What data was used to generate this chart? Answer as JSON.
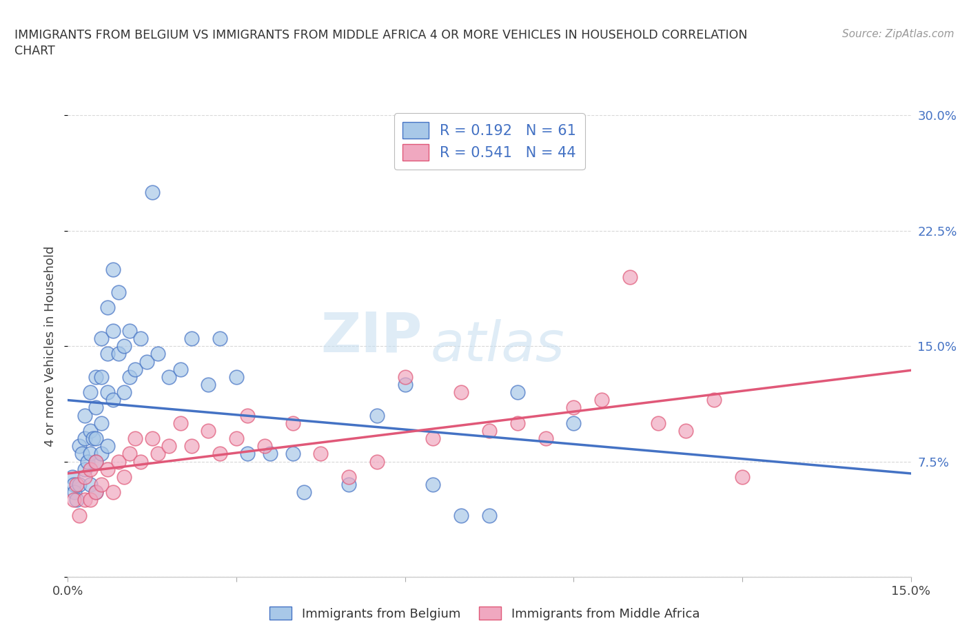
{
  "title_line1": "IMMIGRANTS FROM BELGIUM VS IMMIGRANTS FROM MIDDLE AFRICA 4 OR MORE VEHICLES IN HOUSEHOLD CORRELATION",
  "title_line2": "CHART",
  "source_text": "Source: ZipAtlas.com",
  "ylabel": "4 or more Vehicles in Household",
  "xlim": [
    0.0,
    0.15
  ],
  "ylim": [
    0.0,
    0.3
  ],
  "xticks": [
    0.0,
    0.03,
    0.06,
    0.09,
    0.12,
    0.15
  ],
  "yticks": [
    0.0,
    0.075,
    0.15,
    0.225,
    0.3
  ],
  "xtick_labels": [
    "0.0%",
    "",
    "",
    "",
    "",
    "15.0%"
  ],
  "ytick_right_labels": [
    "",
    "7.5%",
    "15.0%",
    "22.5%",
    "30.0%"
  ],
  "watermark_zip": "ZIP",
  "watermark_atlas": "atlas",
  "belgium_color": "#a8c8e8",
  "middle_africa_color": "#f0a8c0",
  "belgium_line_color": "#4472c4",
  "middle_africa_line_color": "#e05878",
  "legend_r_belgium": "R = 0.192",
  "legend_n_belgium": "N = 61",
  "legend_r_middle_africa": "R = 0.541",
  "legend_n_middle_africa": "N = 44",
  "legend_text_color": "#4472c4",
  "belgium_scatter_x": [
    0.0008,
    0.001,
    0.0012,
    0.0015,
    0.002,
    0.002,
    0.0025,
    0.003,
    0.003,
    0.003,
    0.0035,
    0.004,
    0.004,
    0.004,
    0.004,
    0.0045,
    0.005,
    0.005,
    0.005,
    0.005,
    0.005,
    0.006,
    0.006,
    0.006,
    0.006,
    0.007,
    0.007,
    0.007,
    0.007,
    0.008,
    0.008,
    0.008,
    0.009,
    0.009,
    0.01,
    0.01,
    0.011,
    0.011,
    0.012,
    0.013,
    0.014,
    0.015,
    0.016,
    0.018,
    0.02,
    0.022,
    0.025,
    0.027,
    0.03,
    0.032,
    0.036,
    0.04,
    0.042,
    0.05,
    0.055,
    0.06,
    0.065,
    0.07,
    0.075,
    0.08,
    0.09
  ],
  "belgium_scatter_y": [
    0.065,
    0.06,
    0.055,
    0.05,
    0.085,
    0.06,
    0.08,
    0.105,
    0.09,
    0.07,
    0.075,
    0.12,
    0.095,
    0.08,
    0.06,
    0.09,
    0.13,
    0.11,
    0.09,
    0.075,
    0.055,
    0.155,
    0.13,
    0.1,
    0.08,
    0.175,
    0.145,
    0.12,
    0.085,
    0.2,
    0.16,
    0.115,
    0.185,
    0.145,
    0.15,
    0.12,
    0.16,
    0.13,
    0.135,
    0.155,
    0.14,
    0.25,
    0.145,
    0.13,
    0.135,
    0.155,
    0.125,
    0.155,
    0.13,
    0.08,
    0.08,
    0.08,
    0.055,
    0.06,
    0.105,
    0.125,
    0.06,
    0.04,
    0.04,
    0.12,
    0.1
  ],
  "middle_africa_scatter_x": [
    0.001,
    0.0015,
    0.002,
    0.003,
    0.003,
    0.004,
    0.004,
    0.005,
    0.005,
    0.006,
    0.007,
    0.008,
    0.009,
    0.01,
    0.011,
    0.012,
    0.013,
    0.015,
    0.016,
    0.018,
    0.02,
    0.022,
    0.025,
    0.027,
    0.03,
    0.032,
    0.035,
    0.04,
    0.045,
    0.05,
    0.055,
    0.06,
    0.065,
    0.07,
    0.075,
    0.08,
    0.085,
    0.09,
    0.095,
    0.1,
    0.105,
    0.11,
    0.115,
    0.12
  ],
  "middle_africa_scatter_y": [
    0.05,
    0.06,
    0.04,
    0.065,
    0.05,
    0.07,
    0.05,
    0.075,
    0.055,
    0.06,
    0.07,
    0.055,
    0.075,
    0.065,
    0.08,
    0.09,
    0.075,
    0.09,
    0.08,
    0.085,
    0.1,
    0.085,
    0.095,
    0.08,
    0.09,
    0.105,
    0.085,
    0.1,
    0.08,
    0.065,
    0.075,
    0.13,
    0.09,
    0.12,
    0.095,
    0.1,
    0.09,
    0.11,
    0.115,
    0.195,
    0.1,
    0.095,
    0.115,
    0.065
  ],
  "background_color": "#ffffff",
  "grid_color": "#d8d8d8"
}
